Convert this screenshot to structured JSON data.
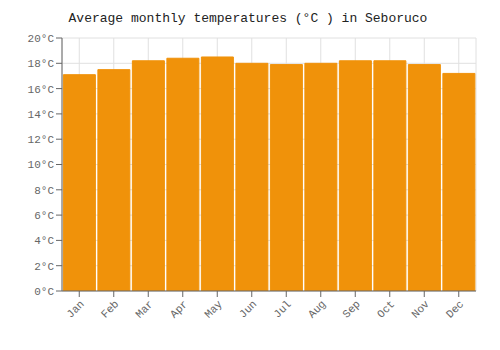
{
  "chart_data": {
    "type": "bar",
    "title": "Average monthly temperatures (°C ) in Seboruco",
    "categories": [
      "Jan",
      "Feb",
      "Mar",
      "Apr",
      "May",
      "Jun",
      "Jul",
      "Aug",
      "Sep",
      "Oct",
      "Nov",
      "Dec"
    ],
    "values": [
      17.1,
      17.5,
      18.2,
      18.4,
      18.5,
      18.0,
      17.9,
      18.0,
      18.2,
      18.2,
      17.9,
      17.2
    ],
    "color": "#F0920A",
    "ylim": [
      0,
      20
    ],
    "yticks": [
      {
        "value": 0,
        "label": "0°C"
      },
      {
        "value": 2,
        "label": "2°C"
      },
      {
        "value": 4,
        "label": "4°C"
      },
      {
        "value": 6,
        "label": "6°C"
      },
      {
        "value": 8,
        "label": "8°C"
      },
      {
        "value": 10,
        "label": "10°C"
      },
      {
        "value": 12,
        "label": "12°C"
      },
      {
        "value": 14,
        "label": "14°C"
      },
      {
        "value": 16,
        "label": "16°C"
      },
      {
        "value": 18,
        "label": "18°C"
      },
      {
        "value": 20,
        "label": "20°C"
      }
    ],
    "grid": true
  }
}
